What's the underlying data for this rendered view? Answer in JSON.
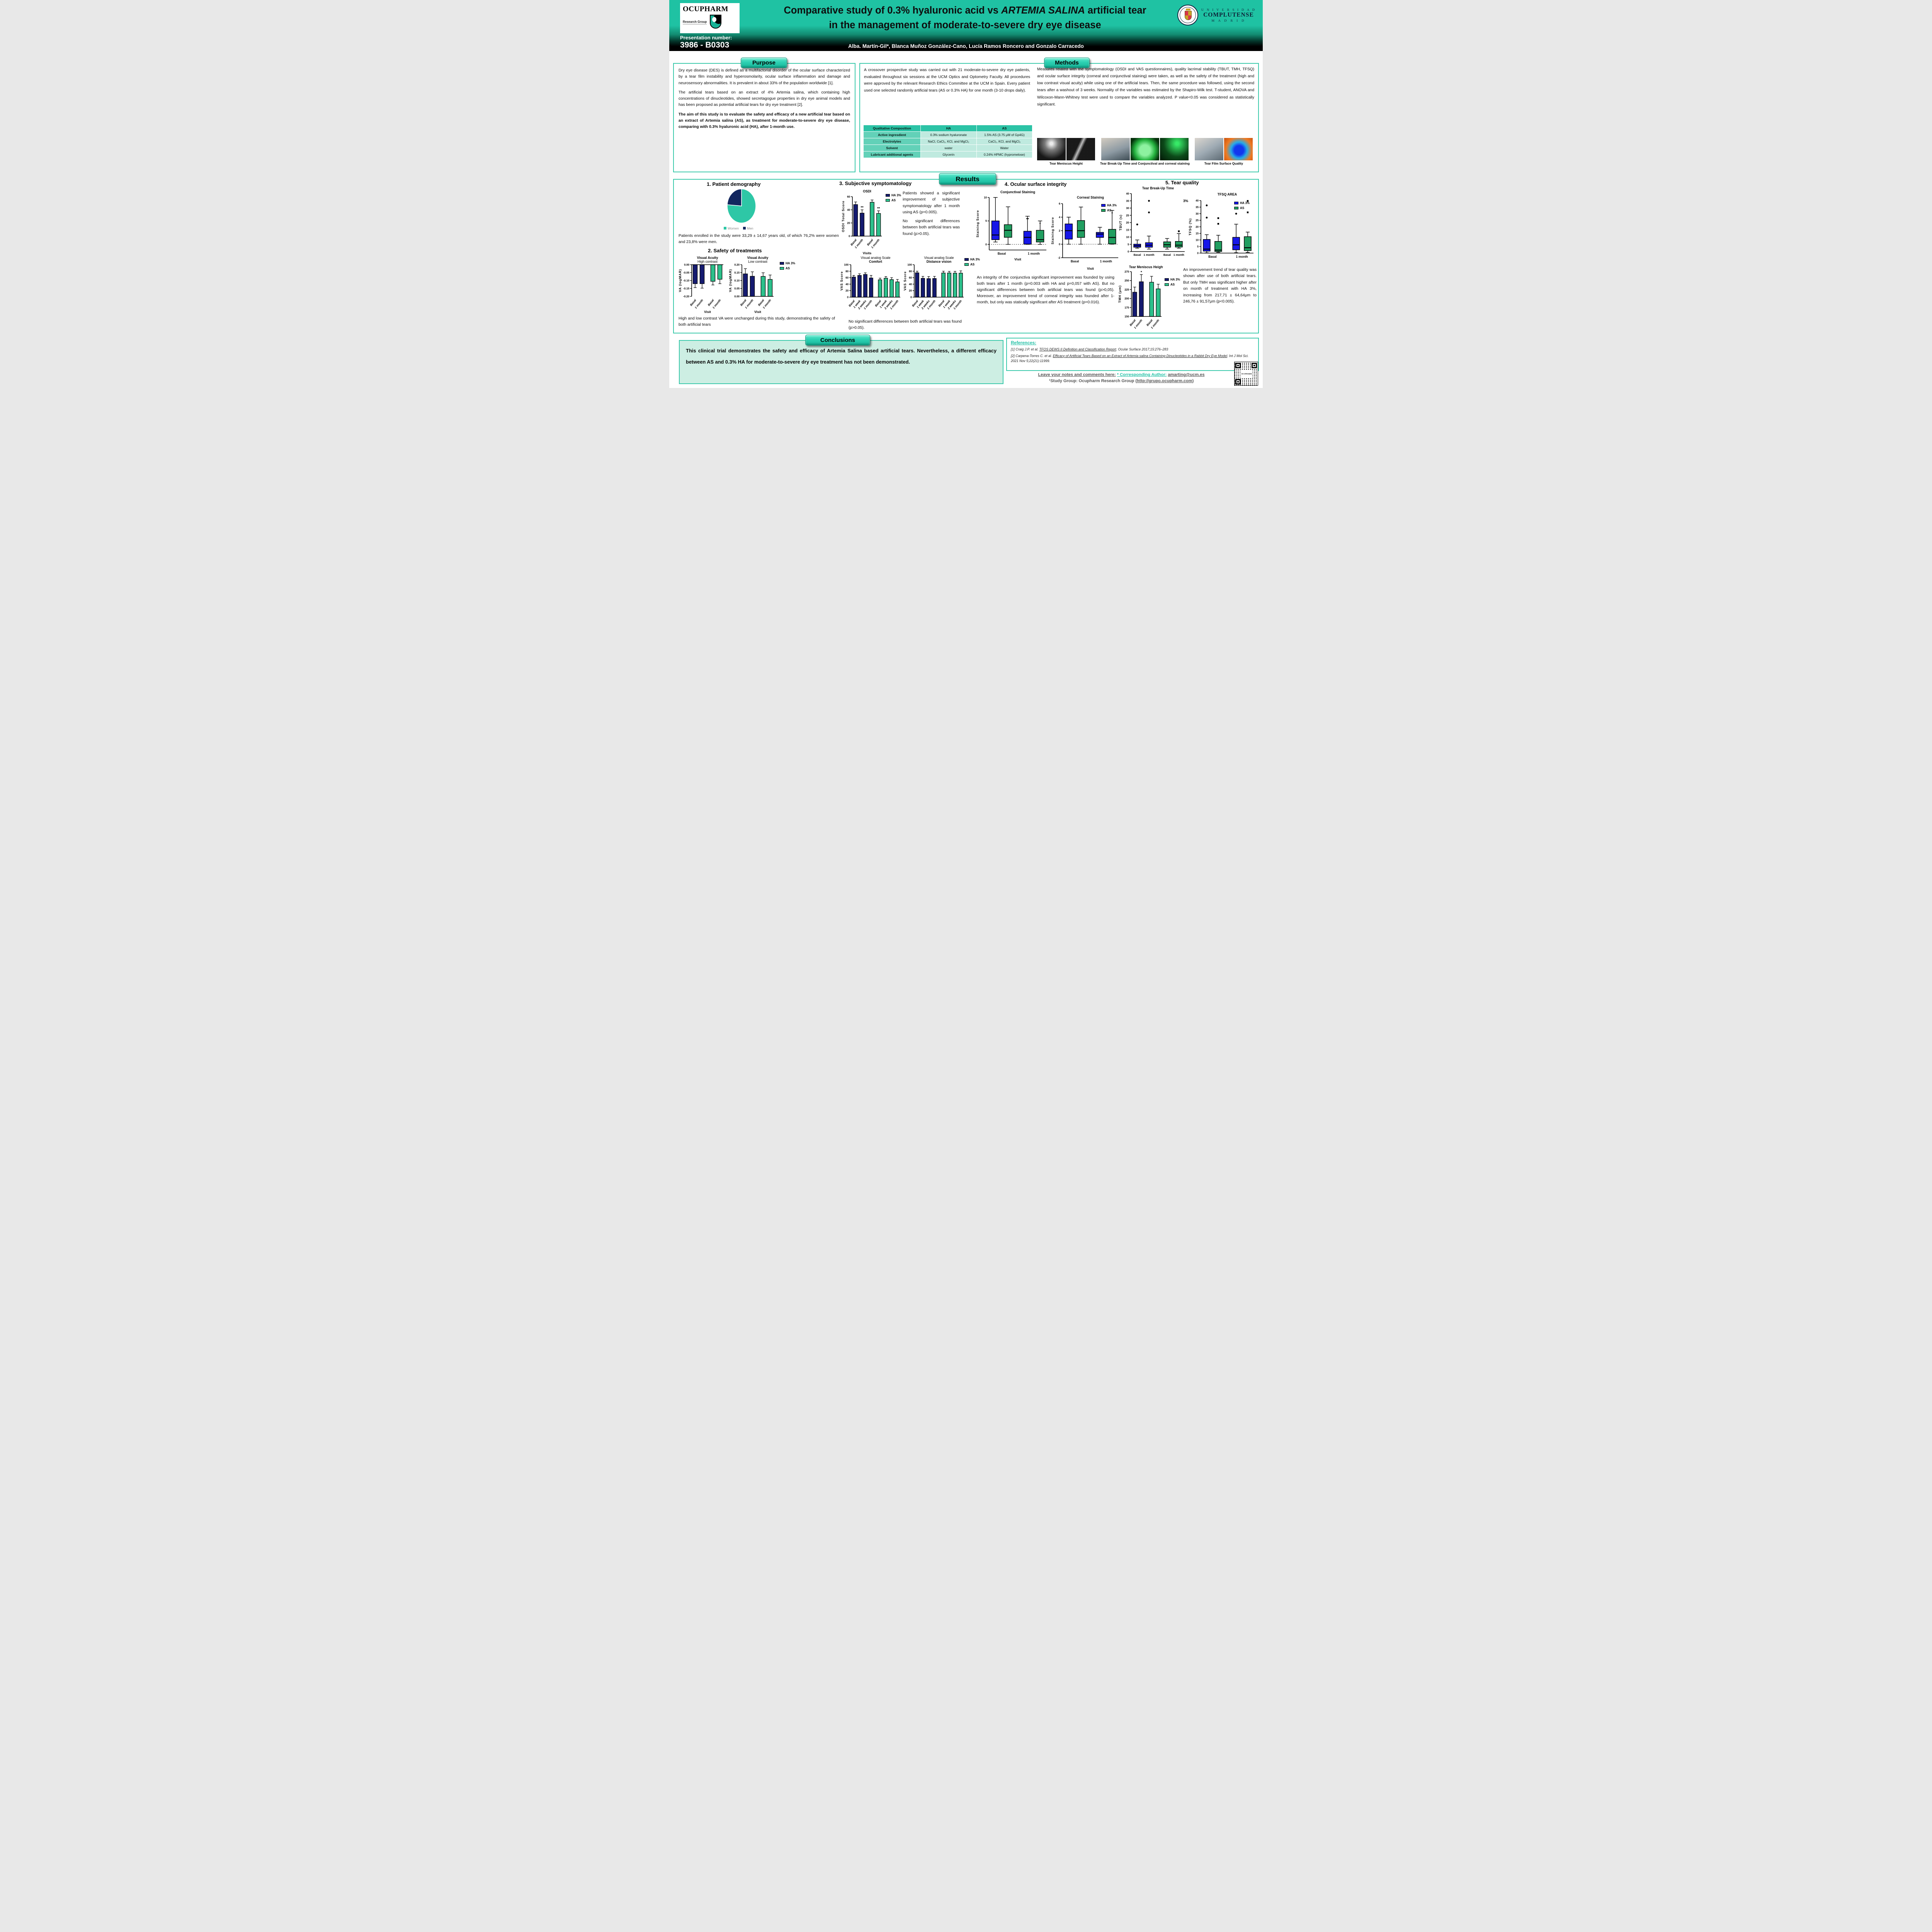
{
  "header": {
    "logo": {
      "name": "OCUPHARM",
      "subtitle": "Research Group"
    },
    "presentation_label": "Presentation number:",
    "presentation_number": "3986 - B0303",
    "title": {
      "part1": "Comparative study of 0.3% hyaluronic acid vs ",
      "italic": "ARTEMIA SALINA",
      "part2": " artificial tear",
      "line2": "in the management of moderate-to-severe dry eye disease"
    },
    "authors": "Alba. Martín-Gil*, Blanca Muñoz González-Cano, Lucía Ramos Roncero and Gonzalo Carracedo",
    "ucm": {
      "line1": "U N I V E R S I D A D",
      "line2": "COMPLUTENSE",
      "line3": "M A D R I D"
    }
  },
  "sections": {
    "purpose": "Purpose",
    "methods": "Methods",
    "results": "Results",
    "conclusions": "Conclusions"
  },
  "purpose": {
    "p1": "Dry eye disease (DES) is defined as a multifactorial disorder of the ocular surface characterized by a tear film instability and hyperosmolarity, ocular surface inflammation and damage and neurosensory abnormalities. It is prevalent in about 33% of the population worldwide [1].",
    "p2": "The artificial tears based on an extract of 4% Artemia salina, which containing high concentrations of dinucleotides, showed secretagogue properties in dry eye animal models and has been proposed as potential artificial tears for dry eye treatment [2].",
    "p3": "The aim of this study is to evaluate the safety and efficacy of a new artificial tear based on an extract of Artemia salina (AS), as treatment for moderate-to-severe dry eye disease, comparing with 0.3% hyaluronic acid (HA), after 1-month use."
  },
  "methods": {
    "p1": "A crossover prospective study was carried out with 21 moderate-to-severe dry eye patients, evaluated throughout six sessions at the UCM Optics and Optometry Faculty. All procedures were approved by the relevant Research Ethics Committee at the UCM in Spain. Every patient used one selected randomly artificial tears (AS or 0.3% HA) for one month (3-10 drops daily).",
    "p2": "Measures related with the symptomatology (OSDI and VAS questionnaires), quality lacrimal stability (TBUT, TMH, TFSQ) and ocular surface integrity (corneal and conjunctival staining) were taken, as well as the safety of the treatment (high and low contrast visual acuity) while using one of the artificial tears. Then, the same procedure was followed, using the second tears after a washout of 3 weeks. Normality of the variables was estimated by the Shapiro-Wilk test. T-student, ANOVA and Wilcoxon-Mann-Whitney test were used to compare the variables analyzed. P value<0.05 was considered as statistically significant.",
    "table": {
      "headers": [
        "Qualitative Composition",
        "HA",
        "AS"
      ],
      "rows": [
        [
          "Active ingresdient",
          "0.3% sodium hyaluronate",
          "1.5% AS (3.75 μM of Gp4G)"
        ],
        [
          "Electrolytes",
          "NaCl, CaCl₂, KCl, and MgCl₂",
          "CaCl₂, KCl, and MgCl₂"
        ],
        [
          "Solvent",
          "water",
          "Water"
        ],
        [
          "Lubricant additional agents",
          "Glycerin",
          "0.24% HPMC (hypromelose)"
        ]
      ]
    },
    "captions": [
      "Tear Meniscus Height",
      "Tear Break-Up Time and Conjunctival and corneal staining",
      "Tear Film Surface Quality"
    ]
  },
  "results": {
    "s1": {
      "title": "1. Patient demography",
      "text": "Patients enrolled in the study were 33,29 ± 14,67 years old, of which 76,2% were women and 23,8% were men."
    },
    "s2": {
      "title": "2. Safety of treatments",
      "note": "High and low contrast VA were unchanged during this study, demonstrating the safety of both artificial tears"
    },
    "s3": {
      "title": "3. Subjective symptomatology",
      "p1": "Patients showed a significant improvement of subjective symptomatology after 1 month using AS (p=0.005).",
      "p2": "No significant differences between both artificial tears was found (p>0.05).",
      "note": "No significant differences between both artificial tears was found (p>0.05)."
    },
    "s4": {
      "title": "4. Ocular surface integrity",
      "text": "An integrity of the conjunctiva significant improvement was founded by using both tears after 1 month (p=0.003 with HA and p=0,057 with AS). But no significant differences between both artificial tears was found (p>0,05). Moreover, an improvement trend of corneal integrity was founded after 1-month, but only was statically significant after AS treatment (p=0.016)."
    },
    "s5": {
      "title": "5. Tear quality",
      "stray": "3%",
      "text": "An improvement trend of tear quality was shown after use of both artificial tears. But only TMH was significant higher after on month of treatment with HA 3%, increasing from 217,71 ± 64,64μm to 246,76 ± 91,57μm (p<0.005)."
    }
  },
  "conclusions": {
    "text": "This clinical trial demonstrates the safety and efficacy of Artemia Salina based artificial tears. Nevertheless, a different efficacy between AS and 0.3% HA for moderate-to-severe dry eye treatment has not been demonstrated."
  },
  "references": {
    "title": "References:",
    "items": [
      {
        "a": "[1] Craig J.P.  et al. ",
        "b": "TFOS DEWS II Definition and Classification Report",
        "c": ". Ocular Surface 2017;15:276–283"
      },
      {
        "a": "[2] Carpena-Torres C. et al. ",
        "b": "Efficacy of Artificial Tears Based on an Extract of Artemia salina Containing Dinucleotides in a Rabbit Dry Eye Model",
        "c": ". Int J Mol Sci. 2021 Nov 5;22(21):11999."
      }
    ]
  },
  "footer": {
    "notes": "Leave your notes and comments here:",
    "corresponding": "* Corresponding Author:",
    "email": "amarting@ucm.es",
    "group_pre": "¹Study Group: Ocupharm Research Group (",
    "url": "http://grupo.ocupharm.com",
    "group_post": ")"
  },
  "legends": {
    "bar": [
      {
        "label": "HA 3%",
        "color": "#151b70"
      },
      {
        "label": "AS",
        "color": "#2cc08b"
      }
    ],
    "box": [
      {
        "label": "HA 3%",
        "color": "#1717e8"
      },
      {
        "label": "AS",
        "color": "#219e60"
      }
    ]
  },
  "chart_data": [
    {
      "id": "pie_gender",
      "type": "pie",
      "w": 150,
      "h": 116,
      "cx": 75,
      "cy": 48,
      "rx": 37,
      "ry": 44,
      "values": [
        76.2,
        23.8
      ],
      "labels": [
        "Women",
        "Men"
      ],
      "colors": [
        "#2ec7a6",
        "#12265e"
      ]
    },
    {
      "id": "va_high",
      "type": "bar",
      "w": 124,
      "h": 152,
      "pl": 36,
      "pt": 24,
      "pr": 6,
      "pb": 46,
      "title": [
        [
          "Visual Acuity",
          700
        ],
        [
          "High contrast",
          400
        ]
      ],
      "ylabel": "VA (logMAR)",
      "xlabel": "Visit",
      "ylim": [
        -0.2,
        0
      ],
      "yticks": [
        0,
        -0.05,
        -0.1,
        -0.15,
        -0.2
      ],
      "ydec": 2,
      "axis": "top",
      "cats": [
        "Basal",
        "1 month",
        "Basal",
        "1 month"
      ],
      "values": [
        -0.12,
        -0.12,
        -0.105,
        -0.092
      ],
      "errs": [
        0.025,
        0.028,
        0.023,
        0.028
      ],
      "colors": [
        "#151b70",
        "#151b70",
        "#2cc08b",
        "#2cc08b"
      ],
      "gapAfter": [
        1
      ]
    },
    {
      "id": "va_low",
      "type": "bar",
      "w": 124,
      "h": 152,
      "pl": 36,
      "pt": 24,
      "pr": 6,
      "pb": 46,
      "title": [
        [
          "Visual Acuity",
          700
        ],
        [
          "Low contrast",
          400
        ]
      ],
      "ylabel": "VA (logMAR)",
      "xlabel": "Visit",
      "ylim": [
        0,
        0.2
      ],
      "yticks": [
        0,
        0.05,
        0.1,
        0.15,
        0.2
      ],
      "ydec": 2,
      "axis": "bottom",
      "cats": [
        "Basal",
        "1 month",
        "Basal",
        "1 month"
      ],
      "values": [
        0.142,
        0.127,
        0.126,
        0.107
      ],
      "errs": [
        0.033,
        0.028,
        0.023,
        0.028
      ],
      "colors": [
        "#151b70",
        "#151b70",
        "#2cc08b",
        "#2cc08b"
      ],
      "gapAfter": [
        1
      ]
    },
    {
      "id": "osdi",
      "type": "bar",
      "w": 140,
      "h": 172,
      "pl": 30,
      "pt": 20,
      "pr": 34,
      "pb": 50,
      "title": [
        [
          "OSDI",
          700
        ]
      ],
      "ylabel": "OSDI Total Score",
      "xlabel": "Visits",
      "ylim": [
        0,
        60
      ],
      "yticks": [
        0,
        20,
        40,
        60
      ],
      "ydec": 0,
      "axis": "bottom",
      "cats": [
        "Basal",
        "1 month",
        "Basal",
        "1 month"
      ],
      "values": [
        48,
        35,
        51.5,
        34.5
      ],
      "errs": [
        4,
        5,
        3.5,
        4
      ],
      "sig": [
        null,
        "**",
        null,
        "**"
      ],
      "colors": [
        "#151b70",
        "#151b70",
        "#2cc08b",
        "#2cc08b"
      ],
      "gapAfter": [
        1
      ]
    },
    {
      "id": "vas_comfort",
      "type": "bar",
      "w": 162,
      "h": 160,
      "pl": 30,
      "pt": 24,
      "pr": 4,
      "pb": 52,
      "title": [
        [
          "Visual analog Scale",
          400
        ],
        [
          "Comfort",
          700
        ]
      ],
      "ylabel": "VAS Score",
      "ylim": [
        0,
        100
      ],
      "yticks": [
        0,
        20,
        40,
        60,
        80,
        100
      ],
      "ydec": 0,
      "axis": "bottom",
      "cats": [
        "Basal",
        "1 week",
        "2 weeks",
        "1 month",
        "Basal",
        "1 week",
        "2 weeks",
        "1 month"
      ],
      "values": [
        62,
        67,
        70,
        59,
        53.5,
        58.5,
        54,
        47
      ],
      "errs": [
        5,
        5,
        5,
        8,
        5,
        5,
        6,
        7.5
      ],
      "colors": [
        "#151b70",
        "#151b70",
        "#151b70",
        "#151b70",
        "#2cc08b",
        "#2cc08b",
        "#2cc08b",
        "#2cc08b"
      ],
      "gapAfter": [
        3
      ]
    },
    {
      "id": "vas_distance",
      "type": "bar",
      "w": 162,
      "h": 160,
      "pl": 30,
      "pt": 24,
      "pr": 4,
      "pb": 52,
      "title": [
        [
          "Visual analog Scale",
          400
        ],
        [
          "Distance vision",
          700
        ]
      ],
      "ylabel": "VAS Score",
      "ylim": [
        0,
        100
      ],
      "yticks": [
        0,
        20,
        40,
        60,
        80,
        100
      ],
      "ydec": 0,
      "axis": "bottom",
      "cats": [
        "Basal",
        "1 week",
        "2 weeks",
        "1 month",
        "Basal",
        "1 week",
        "2 weeks",
        "1 month"
      ],
      "values": [
        75,
        58,
        57,
        57.5,
        74.5,
        74.5,
        74,
        74
      ],
      "errs": [
        5,
        6,
        6.5,
        6.5,
        5.5,
        5,
        5.5,
        7
      ],
      "colors": [
        "#151b70",
        "#151b70",
        "#151b70",
        "#151b70",
        "#2cc08b",
        "#2cc08b",
        "#2cc08b",
        "#2cc08b"
      ],
      "gapAfter": [
        3
      ]
    },
    {
      "id": "conj",
      "type": "box",
      "w": 192,
      "h": 186,
      "pl": 36,
      "pt": 20,
      "pr": 8,
      "pb": 30,
      "title": [
        [
          "Conjunctival Staining",
          700
        ]
      ],
      "ylabel": "Staining Score",
      "xlabel": "Visit",
      "ylim": [
        -1.2,
        10
      ],
      "yticks": [
        0,
        5,
        10
      ],
      "ydec": 0,
      "zeroline": true,
      "boxes": [
        {
          "lo": 0.5,
          "q1": 1,
          "med": 2,
          "q3": 5,
          "hi": 10,
          "color": "#1717e8"
        },
        {
          "lo": 0,
          "q1": 1.5,
          "med": 3,
          "q3": 4.2,
          "hi": 8,
          "color": "#219e60"
        },
        {
          "lo": 0,
          "q1": 0.05,
          "med": 1.5,
          "q3": 2.8,
          "hi": 6,
          "color": "#1717e8",
          "annot": "**"
        },
        {
          "lo": 0,
          "q1": 0.5,
          "med": 1,
          "q3": 3,
          "hi": 5,
          "color": "#219e60",
          "annot": "*"
        }
      ],
      "gapAfter": [
        1
      ],
      "groupLabels": [
        "Basal",
        "1 month"
      ]
    },
    {
      "id": "corneal",
      "type": "box",
      "w": 180,
      "h": 196,
      "pl": 32,
      "pt": 22,
      "pr": 4,
      "pb": 34,
      "title": [
        [
          "Corneal Staining",
          700
        ]
      ],
      "ylabel": "Staining Score",
      "xlabel": "Visit",
      "ylim": [
        -2,
        6
      ],
      "yticks": [
        -2,
        0,
        2,
        4,
        6
      ],
      "ydec": 0,
      "zeroline": true,
      "boxes": [
        {
          "lo": 0,
          "q1": 0.75,
          "med": 2,
          "q3": 3,
          "hi": 4,
          "color": "#1717e8"
        },
        {
          "lo": 0,
          "q1": 1,
          "med": 2,
          "q3": 3.5,
          "hi": 5.5,
          "color": "#219e60"
        },
        {
          "lo": 0,
          "q1": 1,
          "med": 1.5,
          "q3": 1.75,
          "hi": 2.5,
          "color": "#1717e8"
        },
        {
          "lo": 0,
          "q1": 0.05,
          "med": 1,
          "q3": 2.2,
          "hi": 5,
          "color": "#219e60",
          "annot": "*"
        }
      ],
      "gapAfter": [
        1
      ],
      "groupLabels": [
        "Basal",
        "1 month"
      ]
    },
    {
      "id": "tbut",
      "type": "box",
      "w": 178,
      "h": 198,
      "pl": 34,
      "pt": 20,
      "pr": 6,
      "pb": 28,
      "title": [
        [
          "Tear Break-Up Time",
          700
        ]
      ],
      "ylabel": "TBUT (s)",
      "ylim": [
        0,
        40
      ],
      "yticks": [
        0,
        5,
        10,
        15,
        20,
        25,
        30,
        35,
        40
      ],
      "ydec": 0,
      "boxes": [
        {
          "lo": 2.3,
          "q1": 3,
          "med": 4,
          "q3": 5.1,
          "hi": 8,
          "color": "#1717e8",
          "out": [
            18.7
          ],
          "osym": "c"
        },
        {
          "lo": 1.7,
          "q1": 3,
          "med": 4.4,
          "q3": 6.1,
          "hi": 10.7,
          "color": "#1717e8",
          "out": [
            27,
            35
          ],
          "osym": "c"
        },
        {
          "lo": 1.7,
          "q1": 3,
          "med": 4.7,
          "q3": 6.7,
          "hi": 9,
          "color": "#219e60"
        },
        {
          "lo": 2.3,
          "q1": 3.1,
          "med": 4.4,
          "q3": 7,
          "hi": 12.4,
          "color": "#219e60",
          "out": [
            14
          ],
          "osym": "s"
        }
      ],
      "gapAfter": [
        1
      ],
      "cats": [
        "Basal",
        "1 month",
        "Basal",
        "1 month"
      ],
      "catRot": 0
    },
    {
      "id": "tfsq",
      "type": "box",
      "w": 178,
      "h": 186,
      "pl": 34,
      "pt": 22,
      "pr": 8,
      "pb": 28,
      "title": [
        [
          "TFSQ AREA",
          700
        ]
      ],
      "ylabel": "TFSQ (%)",
      "ylim": [
        0,
        40
      ],
      "yticks": [
        0,
        5,
        10,
        15,
        20,
        25,
        30,
        35,
        40
      ],
      "ydec": 0,
      "boxes": [
        {
          "lo": 0.2,
          "q1": 1.5,
          "med": 3,
          "q3": 10.4,
          "hi": 14,
          "color": "#1717e8",
          "out": [
            27,
            36.3
          ],
          "osym": "c"
        },
        {
          "lo": 0.6,
          "q1": 1.2,
          "med": 2.3,
          "q3": 8.9,
          "hi": 13.6,
          "color": "#219e60",
          "out": [
            22.3,
            26.6
          ],
          "osym": "s"
        },
        {
          "lo": 0.3,
          "q1": 2.5,
          "med": 6.3,
          "q3": 12,
          "hi": 22,
          "color": "#1717e8",
          "out": [
            30
          ],
          "osym": "c"
        },
        {
          "lo": 0.5,
          "q1": 1.9,
          "med": 4.1,
          "q3": 12.5,
          "hi": 16,
          "color": "#219e60",
          "out": [
            31,
            39.7
          ],
          "osym": "s"
        }
      ],
      "gapAfter": [
        1
      ],
      "groupLabels": [
        "Basal",
        "1 month"
      ]
    },
    {
      "id": "tmh",
      "type": "bar",
      "w": 118,
      "h": 178,
      "pl": 36,
      "pt": 18,
      "pr": 4,
      "pb": 44,
      "title": [
        [
          "Tear Meniscus Height",
          700
        ]
      ],
      "ylabel": "TMH (μm)",
      "ylim": [
        150,
        275
      ],
      "yticks": [
        150,
        175,
        200,
        225,
        250,
        275
      ],
      "ydec": 0,
      "axis": "bottom",
      "baseline": 150,
      "cats": [
        "Basal",
        "1 month",
        "Basal",
        "1 month"
      ],
      "values": [
        217.7,
        246.8,
        245.5,
        227
      ],
      "errs": [
        14.3,
        20,
        16.5,
        13
      ],
      "sig": [
        null,
        "*",
        null,
        null
      ],
      "colors": [
        "#151b70",
        "#151b70",
        "#2cc08b",
        "#2cc08b"
      ],
      "gapAfter": [
        1
      ]
    }
  ]
}
